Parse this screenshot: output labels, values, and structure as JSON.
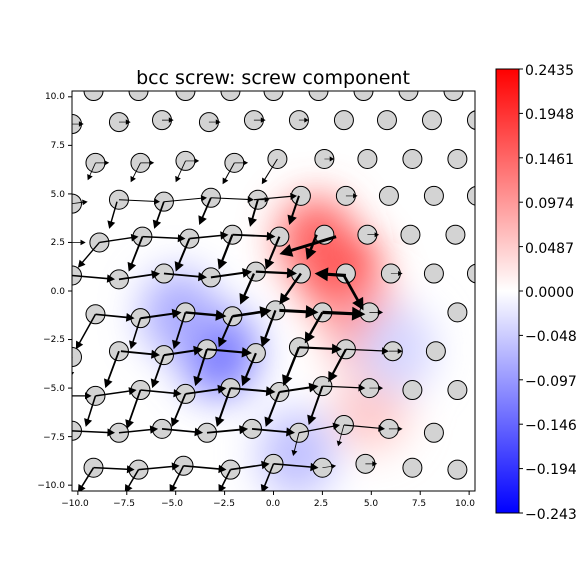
{
  "chart_data": {
    "type": "quiver-on-heatmap",
    "title": "bcc screw: screw component",
    "xlabel": "",
    "ylabel": "",
    "xlim": [
      -10.3,
      10.3
    ],
    "ylim": [
      -10.3,
      10.3
    ],
    "x_ticks": [
      "−10.0",
      "−7.5",
      "−5.0",
      "−2.5",
      "0.0",
      "2.5",
      "5.0",
      "7.5",
      "10.0"
    ],
    "y_ticks": [
      "10.0",
      "7.5",
      "5.0",
      "2.5",
      "0.0",
      "−2.5",
      "−5.0",
      "−7.5",
      "−10.0"
    ],
    "colormap": "bwr",
    "colorbar": {
      "min": -0.2435,
      "max": 0.2435,
      "tick_labels": [
        "0.2435",
        "0.1948",
        "0.1461",
        "0.0974",
        "0.0487",
        "0.0000",
        "−0.0487",
        "−0.0974",
        "−0.1461",
        "−0.1948",
        "−0.2435"
      ]
    },
    "field_blobs": [
      {
        "x": 3.5,
        "y": 0.8,
        "value": 0.24
      },
      {
        "x": 2.2,
        "y": 2.6,
        "value": 0.15
      },
      {
        "x": 4.6,
        "y": -1.6,
        "value": 0.1
      },
      {
        "x": 5.0,
        "y": -6.0,
        "value": 0.05
      },
      {
        "x": -2.8,
        "y": -3.2,
        "value": -0.13
      },
      {
        "x": -4.8,
        "y": -1.2,
        "value": -0.08
      },
      {
        "x": 1.2,
        "y": -8.4,
        "value": -0.06
      },
      {
        "x": 6.3,
        "y": -3.0,
        "value": -0.04
      }
    ],
    "atoms": [
      [
        -9.2,
        10.3
      ],
      [
        -6.9,
        10.3
      ],
      [
        -4.5,
        10.3
      ],
      [
        -2.2,
        10.3
      ],
      [
        0.0,
        10.3
      ],
      [
        2.3,
        10.3
      ],
      [
        4.6,
        10.3
      ],
      [
        6.9,
        10.3
      ],
      [
        9.2,
        10.3
      ],
      [
        -10.3,
        8.6
      ],
      [
        -7.9,
        8.7
      ],
      [
        -5.7,
        8.8
      ],
      [
        -3.3,
        8.7
      ],
      [
        -1.0,
        8.8
      ],
      [
        1.3,
        8.8
      ],
      [
        3.6,
        8.8
      ],
      [
        5.8,
        8.8
      ],
      [
        8.1,
        8.8
      ],
      [
        10.4,
        8.8
      ],
      [
        -9.1,
        6.6
      ],
      [
        -6.8,
        6.6
      ],
      [
        -4.5,
        6.7
      ],
      [
        -2.0,
        6.6
      ],
      [
        0.2,
        6.8
      ],
      [
        2.6,
        6.8
      ],
      [
        4.8,
        6.8
      ],
      [
        7.1,
        6.8
      ],
      [
        9.4,
        6.8
      ],
      [
        -10.3,
        4.5
      ],
      [
        -7.9,
        4.7
      ],
      [
        -5.6,
        4.6
      ],
      [
        -3.2,
        4.8
      ],
      [
        -0.8,
        4.7
      ],
      [
        1.4,
        4.9
      ],
      [
        3.7,
        4.9
      ],
      [
        5.9,
        4.9
      ],
      [
        8.2,
        4.9
      ],
      [
        10.4,
        4.9
      ],
      [
        -8.9,
        2.5
      ],
      [
        -6.7,
        2.8
      ],
      [
        -4.3,
        2.7
      ],
      [
        -2.1,
        2.9
      ],
      [
        0.3,
        2.8
      ],
      [
        2.6,
        2.9
      ],
      [
        4.8,
        2.9
      ],
      [
        7.0,
        2.9
      ],
      [
        9.3,
        2.9
      ],
      [
        -10.3,
        0.8
      ],
      [
        -7.9,
        0.6
      ],
      [
        -5.6,
        0.9
      ],
      [
        -3.2,
        0.7
      ],
      [
        -0.9,
        1.0
      ],
      [
        1.4,
        0.9
      ],
      [
        3.7,
        0.9
      ],
      [
        6.0,
        0.9
      ],
      [
        8.2,
        0.9
      ],
      [
        10.4,
        0.9
      ],
      [
        -9.1,
        -1.2
      ],
      [
        -6.8,
        -1.4
      ],
      [
        -4.5,
        -1.1
      ],
      [
        -2.1,
        -1.3
      ],
      [
        0.1,
        -1.0
      ],
      [
        2.5,
        -1.1
      ],
      [
        4.9,
        -1.1
      ],
      [
        9.4,
        -1.1
      ],
      [
        -10.3,
        -3.4
      ],
      [
        -7.9,
        -3.1
      ],
      [
        -5.6,
        -3.3
      ],
      [
        -3.4,
        -3.0
      ],
      [
        -0.9,
        -3.2
      ],
      [
        1.3,
        -2.9
      ],
      [
        3.7,
        -3.0
      ],
      [
        6.1,
        -3.1
      ],
      [
        8.3,
        -3.1
      ],
      [
        -9.1,
        -5.4
      ],
      [
        -6.8,
        -5.1
      ],
      [
        -4.5,
        -5.3
      ],
      [
        -2.2,
        -5.0
      ],
      [
        0.3,
        -5.2
      ],
      [
        2.5,
        -4.9
      ],
      [
        4.9,
        -5.0
      ],
      [
        7.1,
        -5.1
      ],
      [
        9.4,
        -5.1
      ],
      [
        -10.3,
        -7.2
      ],
      [
        -7.9,
        -7.3
      ],
      [
        -5.7,
        -7.1
      ],
      [
        -3.4,
        -7.3
      ],
      [
        -1.1,
        -7.1
      ],
      [
        1.3,
        -7.3
      ],
      [
        3.6,
        -6.9
      ],
      [
        5.9,
        -7.1
      ],
      [
        8.2,
        -7.3
      ],
      [
        -9.2,
        -9.1
      ],
      [
        -6.9,
        -9.2
      ],
      [
        -4.6,
        -9.0
      ],
      [
        -2.2,
        -9.2
      ],
      [
        0.0,
        -8.9
      ],
      [
        2.5,
        -9.1
      ],
      [
        4.7,
        -8.9
      ],
      [
        7.1,
        -9.1
      ],
      [
        9.4,
        -9.2
      ]
    ],
    "arrows": [
      [
        3.2,
        2.8,
        0.3,
        1.9,
        3.0
      ],
      [
        2.2,
        2.9,
        1.7,
        1.6,
        2.6
      ],
      [
        1.3,
        4.9,
        0.8,
        3.4,
        2.0
      ],
      [
        -0.8,
        4.7,
        -1.2,
        3.3,
        1.9
      ],
      [
        -3.2,
        4.8,
        -3.8,
        3.4,
        1.8
      ],
      [
        -5.6,
        4.6,
        -6.1,
        3.2,
        1.7
      ],
      [
        -8.0,
        4.6,
        -8.4,
        3.2,
        1.5
      ],
      [
        -8.9,
        2.5,
        -10.0,
        1.2,
        1.4
      ],
      [
        -6.7,
        2.8,
        -7.4,
        1.0,
        1.8
      ],
      [
        -4.3,
        2.7,
        -5.0,
        1.0,
        2.0
      ],
      [
        -2.1,
        2.9,
        -2.8,
        1.1,
        2.2
      ],
      [
        0.3,
        2.8,
        -0.4,
        1.1,
        2.2
      ],
      [
        -1.0,
        0.9,
        -1.7,
        -0.7,
        2.3
      ],
      [
        1.4,
        0.9,
        0.3,
        -0.7,
        2.4
      ],
      [
        3.7,
        0.8,
        2.1,
        0.9,
        3.2
      ],
      [
        3.6,
        0.8,
        4.6,
        -1.0,
        2.8
      ],
      [
        2.5,
        -1.1,
        4.7,
        -1.2,
        3.2
      ],
      [
        0.3,
        -1.0,
        2.3,
        -1.1,
        3.0
      ],
      [
        -2.1,
        -1.3,
        -0.1,
        -1.0,
        2.6
      ],
      [
        -4.5,
        -1.1,
        -2.4,
        -1.3,
        2.4
      ],
      [
        -6.8,
        -1.4,
        -4.7,
        -1.1,
        2.0
      ],
      [
        -9.1,
        -1.2,
        -7.1,
        -1.4,
        1.7
      ],
      [
        -6.8,
        -1.4,
        -7.3,
        -3.0,
        1.6
      ],
      [
        -4.5,
        -1.1,
        -5.1,
        -3.0,
        1.8
      ],
      [
        -2.1,
        -1.3,
        -2.8,
        -2.9,
        2.0
      ],
      [
        0.1,
        -1.0,
        -0.6,
        -2.9,
        2.3
      ],
      [
        2.5,
        -1.1,
        1.6,
        -2.7,
        2.4
      ],
      [
        -10.3,
        -3.4,
        -10.4,
        -4.5,
        1.2
      ],
      [
        -7.9,
        -3.1,
        -8.6,
        -5.0,
        1.8
      ],
      [
        -5.6,
        -3.3,
        -6.2,
        -5.0,
        1.8
      ],
      [
        -3.4,
        -3.0,
        -4.0,
        -4.9,
        2.0
      ],
      [
        -0.9,
        -3.2,
        -1.6,
        -4.9,
        2.2
      ],
      [
        1.3,
        -2.9,
        0.5,
        -4.9,
        2.4
      ],
      [
        3.7,
        -3.0,
        2.8,
        -4.7,
        2.2
      ],
      [
        -9.1,
        -5.4,
        -9.6,
        -7.0,
        1.6
      ],
      [
        -6.8,
        -5.1,
        -7.5,
        -7.1,
        1.8
      ],
      [
        -4.5,
        -5.3,
        -5.2,
        -7.0,
        1.8
      ],
      [
        -2.2,
        -5.0,
        -2.9,
        -7.0,
        2.0
      ],
      [
        0.3,
        -5.2,
        -0.4,
        -7.0,
        2.0
      ],
      [
        2.5,
        -4.9,
        1.8,
        -6.9,
        2.0
      ],
      [
        -9.2,
        -9.1,
        -10.0,
        -10.4,
        1.6
      ],
      [
        -6.9,
        -9.2,
        -7.6,
        -10.4,
        1.6
      ],
      [
        -4.6,
        -9.0,
        -5.3,
        -10.4,
        1.6
      ],
      [
        -2.2,
        -9.2,
        -2.8,
        -10.4,
        1.6
      ],
      [
        0.0,
        -8.9,
        -0.6,
        -10.4,
        1.6
      ],
      [
        -9.1,
        -1.2,
        -10.1,
        -3.0,
        1.5
      ],
      [
        -7.8,
        -3.1,
        -5.8,
        -3.3,
        1.8
      ],
      [
        -5.6,
        -3.3,
        -3.6,
        -3.0,
        2.0
      ],
      [
        -3.4,
        -3.0,
        -1.1,
        -3.2,
        2.2
      ],
      [
        1.3,
        -2.9,
        3.5,
        -3.0,
        2.2
      ],
      [
        -7.9,
        0.6,
        -5.8,
        0.9,
        1.7
      ],
      [
        -5.6,
        0.9,
        -3.4,
        0.7,
        1.8
      ],
      [
        -3.2,
        0.7,
        -1.1,
        1.0,
        2.0
      ],
      [
        -0.9,
        1.0,
        1.2,
        0.9,
        2.2
      ],
      [
        -10.3,
        0.8,
        -8.1,
        0.6,
        1.6
      ],
      [
        -8.9,
        2.5,
        -6.9,
        2.8,
        1.4
      ],
      [
        -6.7,
        2.8,
        -4.5,
        2.7,
        1.5
      ],
      [
        -4.3,
        2.7,
        -2.3,
        2.9,
        1.6
      ],
      [
        -2.1,
        2.9,
        0.1,
        2.8,
        1.8
      ],
      [
        -10.3,
        -5.4,
        -9.3,
        -5.4,
        1.2
      ],
      [
        -9.1,
        -5.4,
        -7.0,
        -5.1,
        1.5
      ],
      [
        -6.8,
        -5.1,
        -4.7,
        -5.3,
        1.6
      ],
      [
        -4.5,
        -5.3,
        -2.4,
        -5.0,
        1.8
      ],
      [
        -2.2,
        -5.0,
        0.1,
        -5.2,
        2.0
      ],
      [
        0.3,
        -5.2,
        2.3,
        -4.9,
        2.0
      ],
      [
        -10.3,
        -7.2,
        -8.1,
        -7.3,
        1.5
      ],
      [
        -7.9,
        -7.3,
        -5.9,
        -7.1,
        1.6
      ],
      [
        -5.7,
        -7.1,
        -3.6,
        -7.3,
        1.7
      ],
      [
        -3.4,
        -7.3,
        -1.3,
        -7.1,
        1.8
      ],
      [
        -1.1,
        -7.1,
        1.1,
        -7.3,
        1.8
      ],
      [
        -9.2,
        -9.1,
        -7.1,
        -9.2,
        1.5
      ],
      [
        -6.9,
        -9.2,
        -4.8,
        -9.0,
        1.5
      ],
      [
        -4.6,
        -9.0,
        -2.4,
        -9.2,
        1.6
      ],
      [
        -2.2,
        -9.2,
        -0.2,
        -8.9,
        1.6
      ],
      [
        0.0,
        -8.9,
        2.3,
        -9.1,
        1.6
      ],
      [
        3.7,
        -3.0,
        5.9,
        -3.1,
        1.3
      ],
      [
        2.5,
        -4.9,
        4.7,
        -5.0,
        1.3
      ],
      [
        1.3,
        -7.3,
        3.4,
        -6.9,
        1.3
      ],
      [
        3.6,
        -6.9,
        5.7,
        -7.1,
        1.2
      ],
      [
        -1.0,
        4.7,
        1.2,
        4.9,
        1.2
      ],
      [
        -3.2,
        4.8,
        -1.0,
        4.7,
        1.1
      ],
      [
        -5.6,
        4.6,
        -3.4,
        4.8,
        1.0
      ],
      [
        -7.9,
        4.7,
        -5.8,
        4.6,
        1.0
      ],
      [
        0.2,
        6.8,
        -0.6,
        5.5,
        1.0
      ],
      [
        -2.0,
        6.6,
        -2.6,
        5.5,
        1.0
      ],
      [
        -4.5,
        6.7,
        -5.0,
        5.6,
        0.9
      ],
      [
        -6.8,
        6.6,
        -7.3,
        5.6,
        0.9
      ],
      [
        -9.1,
        6.6,
        -9.5,
        5.7,
        0.9
      ],
      [
        -10.3,
        8.6,
        -9.7,
        8.6,
        0.7
      ],
      [
        -7.9,
        8.7,
        -7.3,
        8.7,
        0.7
      ],
      [
        -5.7,
        8.8,
        -5.1,
        8.8,
        0.7
      ],
      [
        -3.3,
        8.7,
        -2.7,
        8.7,
        0.7
      ],
      [
        -1.0,
        8.8,
        -0.4,
        8.8,
        0.7
      ],
      [
        -9.1,
        6.6,
        -8.4,
        6.6,
        0.7
      ],
      [
        -6.8,
        6.6,
        -6.1,
        6.6,
        0.7
      ],
      [
        -4.5,
        6.7,
        -3.8,
        6.7,
        0.7
      ],
      [
        -2.0,
        6.6,
        -1.3,
        6.6,
        0.7
      ],
      [
        -10.3,
        4.5,
        -9.5,
        4.6,
        0.8
      ],
      [
        -10.3,
        2.5,
        -9.6,
        2.5,
        0.8
      ],
      [
        -10.3,
        0.8,
        -10.5,
        -0.2,
        0.8
      ],
      [
        5.9,
        -3.1,
        6.6,
        -3.1,
        0.7
      ],
      [
        4.9,
        -5.0,
        5.6,
        -5.0,
        0.7
      ],
      [
        5.9,
        -7.1,
        6.6,
        -7.1,
        0.7
      ],
      [
        3.6,
        -6.9,
        3.3,
        -8.0,
        0.8
      ],
      [
        2.5,
        -9.1,
        3.2,
        -9.0,
        0.7
      ],
      [
        4.7,
        -8.9,
        5.3,
        -8.9,
        0.7
      ],
      [
        1.3,
        -7.3,
        1.0,
        -8.5,
        0.9
      ],
      [
        4.9,
        -1.1,
        5.6,
        -1.1,
        0.8
      ],
      [
        6.0,
        0.9,
        6.6,
        0.9,
        0.6
      ],
      [
        4.8,
        2.9,
        5.4,
        2.9,
        0.6
      ],
      [
        3.7,
        4.9,
        4.3,
        4.9,
        0.6
      ],
      [
        2.6,
        6.8,
        3.1,
        6.8,
        0.6
      ],
      [
        1.3,
        8.8,
        1.8,
        8.8,
        0.6
      ],
      [
        -0.8,
        4.7,
        -0.2,
        4.7,
        0.7
      ]
    ]
  }
}
